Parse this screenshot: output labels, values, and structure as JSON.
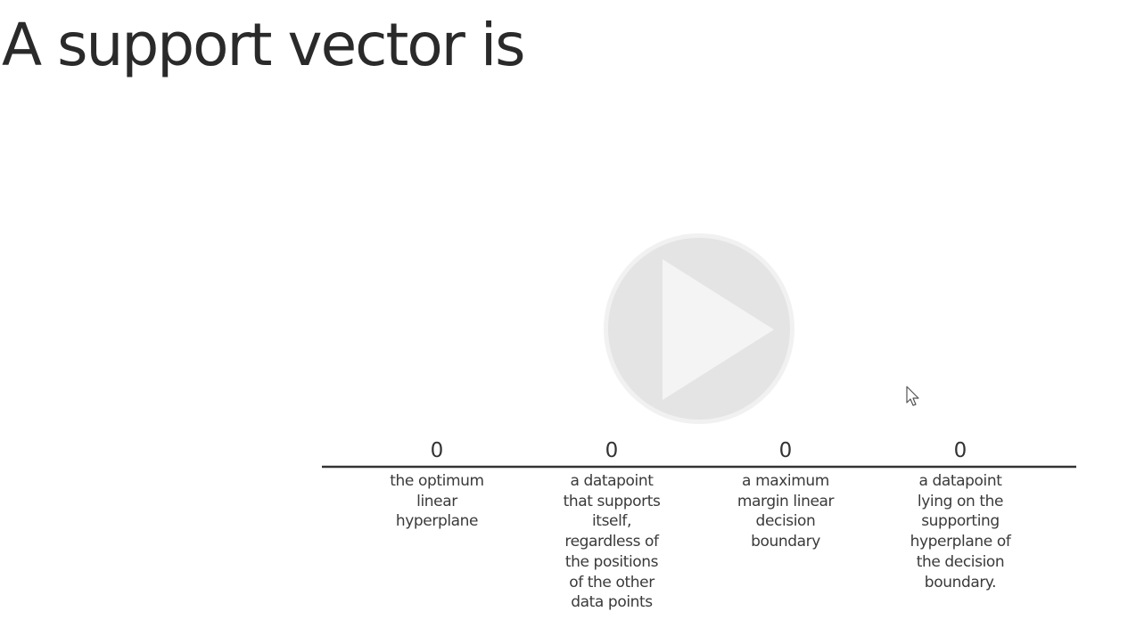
{
  "page": {
    "title": "A support vector is"
  },
  "controls": {
    "play_icon": "play-icon",
    "cursor_icon": "mouse-pointer-icon"
  },
  "chart_data": {
    "type": "bar",
    "title": "A support vector is",
    "categories": [
      "the optimum linear hyperplane",
      "a datapoint that supports itself, regardless of the positions of the other data points",
      "a maximum margin linear decision boundary",
      "a datapoint lying on the supporting hyperplane of the decision boundary."
    ],
    "category_lines": [
      [
        "the optimum",
        "linear",
        "hyperplane"
      ],
      [
        "a datapoint",
        "that supports",
        "itself,",
        "regardless of",
        "the positions",
        "of the other",
        "data points"
      ],
      [
        "a maximum",
        "margin linear",
        "decision",
        "boundary"
      ],
      [
        "a datapoint",
        "lying on the",
        "supporting",
        "hyperplane of",
        "the decision",
        "boundary."
      ]
    ],
    "values": [
      0,
      0,
      0,
      0
    ],
    "data_labels": [
      "0",
      "0",
      "0",
      "0"
    ],
    "grid": false,
    "axis_color": "#333333"
  }
}
